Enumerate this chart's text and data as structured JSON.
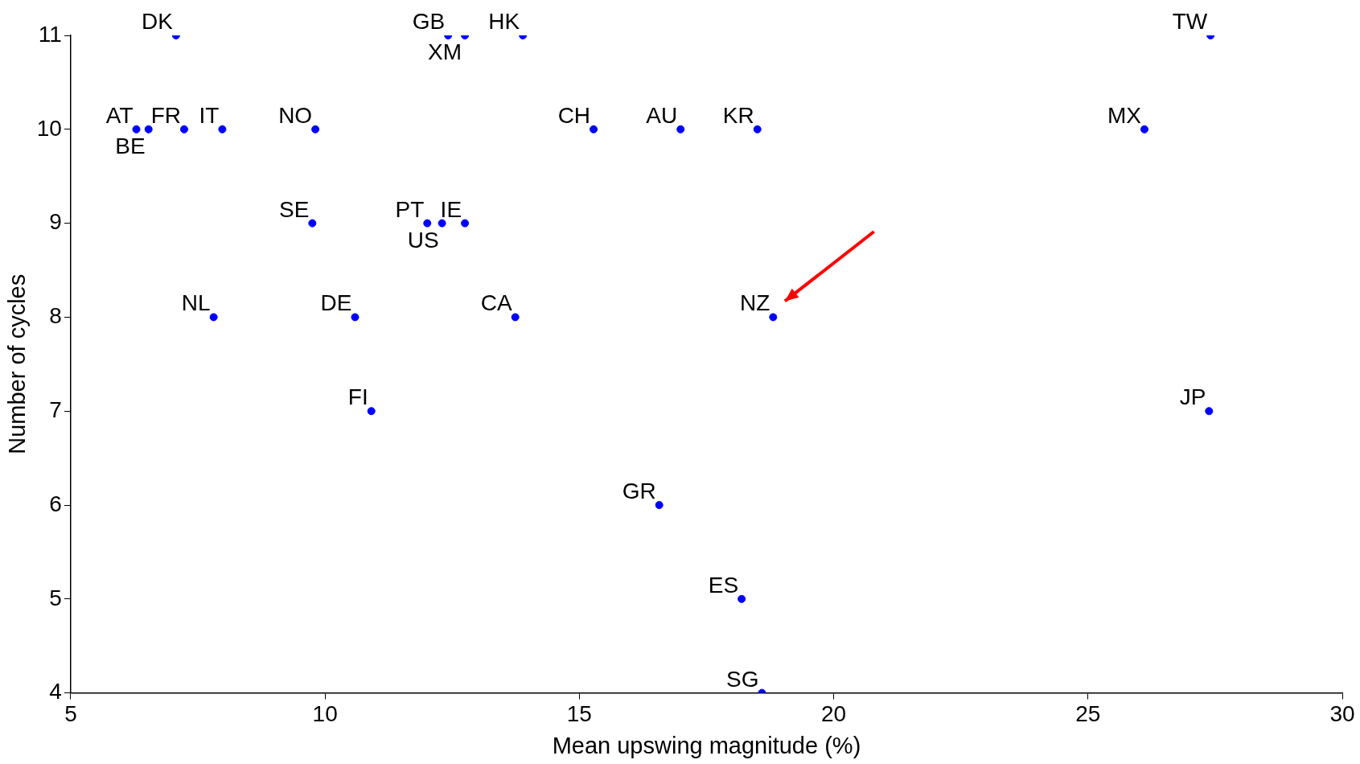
{
  "chart_data": {
    "type": "scatter",
    "xlabel": "Mean upswing magnitude (%)",
    "ylabel": "Number of cycles",
    "x": [
      7.07,
      12.42,
      12.75,
      13.89,
      27.41,
      6.29,
      6.53,
      7.23,
      7.98,
      9.81,
      15.28,
      16.99,
      18.5,
      26.11,
      9.75,
      12.01,
      12.3,
      12.75,
      7.81,
      10.59,
      13.74,
      18.81,
      10.91,
      27.38,
      16.57,
      18.19,
      18.59
    ],
    "series": [
      {
        "color": "#0000ff",
        "values": [
          11,
          11,
          11,
          11,
          11,
          10,
          10,
          10,
          10,
          10,
          10,
          10,
          10,
          10,
          9,
          9,
          9,
          9,
          8,
          8,
          8,
          8,
          7,
          7,
          6,
          5,
          4
        ]
      }
    ],
    "annotations": [
      {
        "text": "DK",
        "x": 7.07,
        "y": 11
      },
      {
        "text": "GB",
        "x": 12.42,
        "y": 11
      },
      {
        "text": "XM",
        "x": 12.75,
        "y": 11
      },
      {
        "text": "HK",
        "x": 13.89,
        "y": 11
      },
      {
        "text": "TW",
        "x": 27.41,
        "y": 11
      },
      {
        "text": "AT",
        "x": 6.29,
        "y": 10
      },
      {
        "text": "BE",
        "x": 6.53,
        "y": 10
      },
      {
        "text": "FR",
        "x": 7.23,
        "y": 10
      },
      {
        "text": "IT",
        "x": 7.98,
        "y": 10
      },
      {
        "text": "NO",
        "x": 9.81,
        "y": 10
      },
      {
        "text": "CH",
        "x": 15.28,
        "y": 10
      },
      {
        "text": "AU",
        "x": 16.99,
        "y": 10
      },
      {
        "text": "KR",
        "x": 18.5,
        "y": 10
      },
      {
        "text": "MX",
        "x": 26.11,
        "y": 10
      },
      {
        "text": "SE",
        "x": 9.75,
        "y": 9
      },
      {
        "text": "PT",
        "x": 12.01,
        "y": 9
      },
      {
        "text": "US",
        "x": 12.3,
        "y": 9
      },
      {
        "text": "IE",
        "x": 12.75,
        "y": 9
      },
      {
        "text": "NL",
        "x": 7.81,
        "y": 8
      },
      {
        "text": "DE",
        "x": 10.59,
        "y": 8
      },
      {
        "text": "CA",
        "x": 13.74,
        "y": 8
      },
      {
        "text": "NZ",
        "x": 18.81,
        "y": 8
      },
      {
        "text": "FI",
        "x": 10.91,
        "y": 7
      },
      {
        "text": "JP",
        "x": 27.38,
        "y": 7
      },
      {
        "text": "GR",
        "x": 16.57,
        "y": 6
      },
      {
        "text": "ES",
        "x": 18.19,
        "y": 5
      },
      {
        "text": "SG",
        "x": 18.59,
        "y": 4
      }
    ],
    "xlim": [
      5,
      30
    ],
    "xticks": [
      5,
      10,
      15,
      20,
      25,
      30
    ],
    "ylim": [
      4,
      11
    ],
    "yticks": [
      4,
      5,
      6,
      7,
      8,
      9,
      10,
      11
    ],
    "grid": false,
    "legend": false,
    "marker": "circle"
  }
}
